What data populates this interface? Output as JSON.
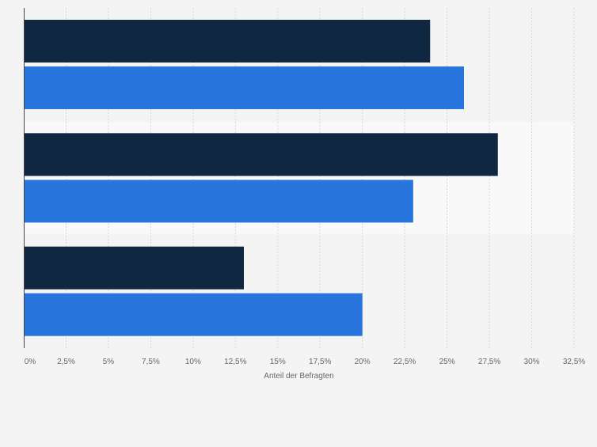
{
  "colors": {
    "background": "#f4f4f4",
    "band": "#f9f9f9",
    "grid": "#d6d6d6",
    "axis": "#444444",
    "tick_text": "#666666",
    "series_dark": "#0f2740",
    "series_blue": "#2876dd"
  },
  "chart_data": {
    "type": "bar",
    "orientation": "horizontal",
    "categories": [
      "",
      "",
      ""
    ],
    "series": [
      {
        "color": "#0f2740",
        "values": [
          24,
          28,
          13
        ]
      },
      {
        "color": "#2876dd",
        "values": [
          26,
          23,
          20
        ]
      }
    ],
    "xlabel": "Anteil der Befragten",
    "ylabel": "",
    "xlim": [
      0,
      32.5
    ],
    "x_ticks": [
      0,
      2.5,
      5,
      7.5,
      10,
      12.5,
      15,
      17.5,
      20,
      22.5,
      25,
      27.5,
      30,
      32.5
    ],
    "x_tick_labels": [
      "0%",
      "2,5%",
      "5%",
      "7,5%",
      "10%",
      "12,5%",
      "15%",
      "17,5%",
      "20%",
      "22,5%",
      "25%",
      "27,5%",
      "30%",
      "32,5%"
    ],
    "grid": true,
    "legend": "none"
  }
}
